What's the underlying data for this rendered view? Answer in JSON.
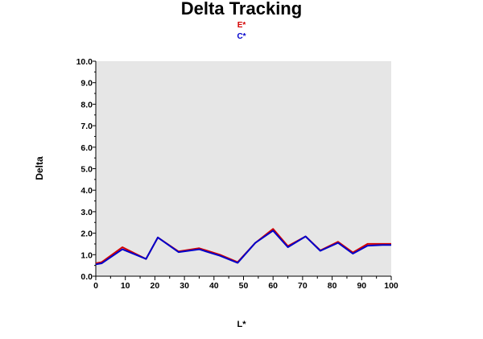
{
  "chart_data": {
    "type": "line",
    "title": "Delta Tracking",
    "xlabel": "L*",
    "ylabel": "Delta",
    "xlim": [
      0,
      100
    ],
    "ylim": [
      0,
      10
    ],
    "x_ticks": [
      "0",
      "10",
      "20",
      "30",
      "40",
      "50",
      "60",
      "70",
      "80",
      "90",
      "100"
    ],
    "y_ticks": [
      "0.0",
      "1.0",
      "2.0",
      "3.0",
      "4.0",
      "5.0",
      "6.0",
      "7.0",
      "8.0",
      "9.0",
      "10.0"
    ],
    "grid": false,
    "legend_position": "top-center",
    "plot_background": "#e6e6e6",
    "series": [
      {
        "name": "E*",
        "color": "#d40000",
        "x": [
          0,
          2,
          9,
          17,
          21,
          28,
          35,
          42,
          48,
          54,
          60,
          65,
          71,
          76,
          82,
          87,
          92,
          97,
          100
        ],
        "y": [
          0.6,
          0.65,
          1.35,
          0.8,
          1.8,
          1.15,
          1.3,
          1.0,
          0.65,
          1.55,
          2.2,
          1.4,
          1.85,
          1.2,
          1.6,
          1.1,
          1.5,
          1.5,
          1.5
        ]
      },
      {
        "name": "C*",
        "color": "#0000cc",
        "x": [
          0,
          2,
          9,
          17,
          21,
          28,
          35,
          42,
          48,
          54,
          60,
          65,
          71,
          76,
          82,
          87,
          92,
          97,
          100
        ],
        "y": [
          0.55,
          0.6,
          1.25,
          0.8,
          1.8,
          1.12,
          1.25,
          0.95,
          0.62,
          1.55,
          2.12,
          1.35,
          1.85,
          1.18,
          1.55,
          1.05,
          1.42,
          1.45,
          1.45
        ]
      }
    ]
  }
}
